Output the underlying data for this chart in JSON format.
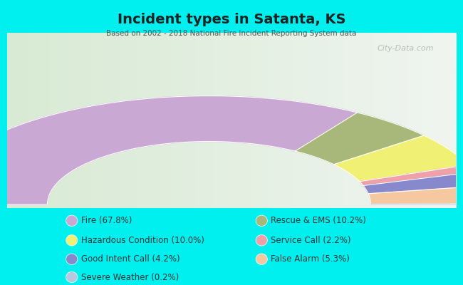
{
  "title": "Incident types in Satanta, KS",
  "subtitle": "Based on 2002 - 2018 National Fire Incident Reporting System data",
  "bg_color": "#00EFEF",
  "chart_bg_left": "#d8ead4",
  "chart_bg_right": "#eef4ee",
  "categories": [
    "Fire",
    "Rescue & EMS",
    "Hazardous Condition",
    "False Alarm",
    "Good Intent Call",
    "Service Call",
    "Severe Weather"
  ],
  "values": [
    67.8,
    10.2,
    10.0,
    5.3,
    4.2,
    2.2,
    0.2
  ],
  "colors": [
    "#c9a8d4",
    "#a8b87a",
    "#f0f075",
    "#f5c8a0",
    "#8888cc",
    "#f0a0a8",
    "#b8c8e0"
  ],
  "display_order": [
    0,
    1,
    2,
    5,
    4,
    3,
    6
  ],
  "legend_items": [
    [
      "Fire (67.8%)",
      "#c9a8d4"
    ],
    [
      "Hazardous Condition (10.0%)",
      "#f0f075"
    ],
    [
      "Good Intent Call (4.2%)",
      "#8888cc"
    ],
    [
      "Severe Weather (0.2%)",
      "#b8c8e0"
    ],
    [
      "Rescue & EMS (10.2%)",
      "#a8b87a"
    ],
    [
      "Service Call (2.2%)",
      "#f0a0a8"
    ],
    [
      "False Alarm (5.3%)",
      "#f5c8a0"
    ]
  ],
  "watermark": "City-Data.com",
  "fig_width": 6.5,
  "fig_height": 4.0,
  "dpi": 100
}
